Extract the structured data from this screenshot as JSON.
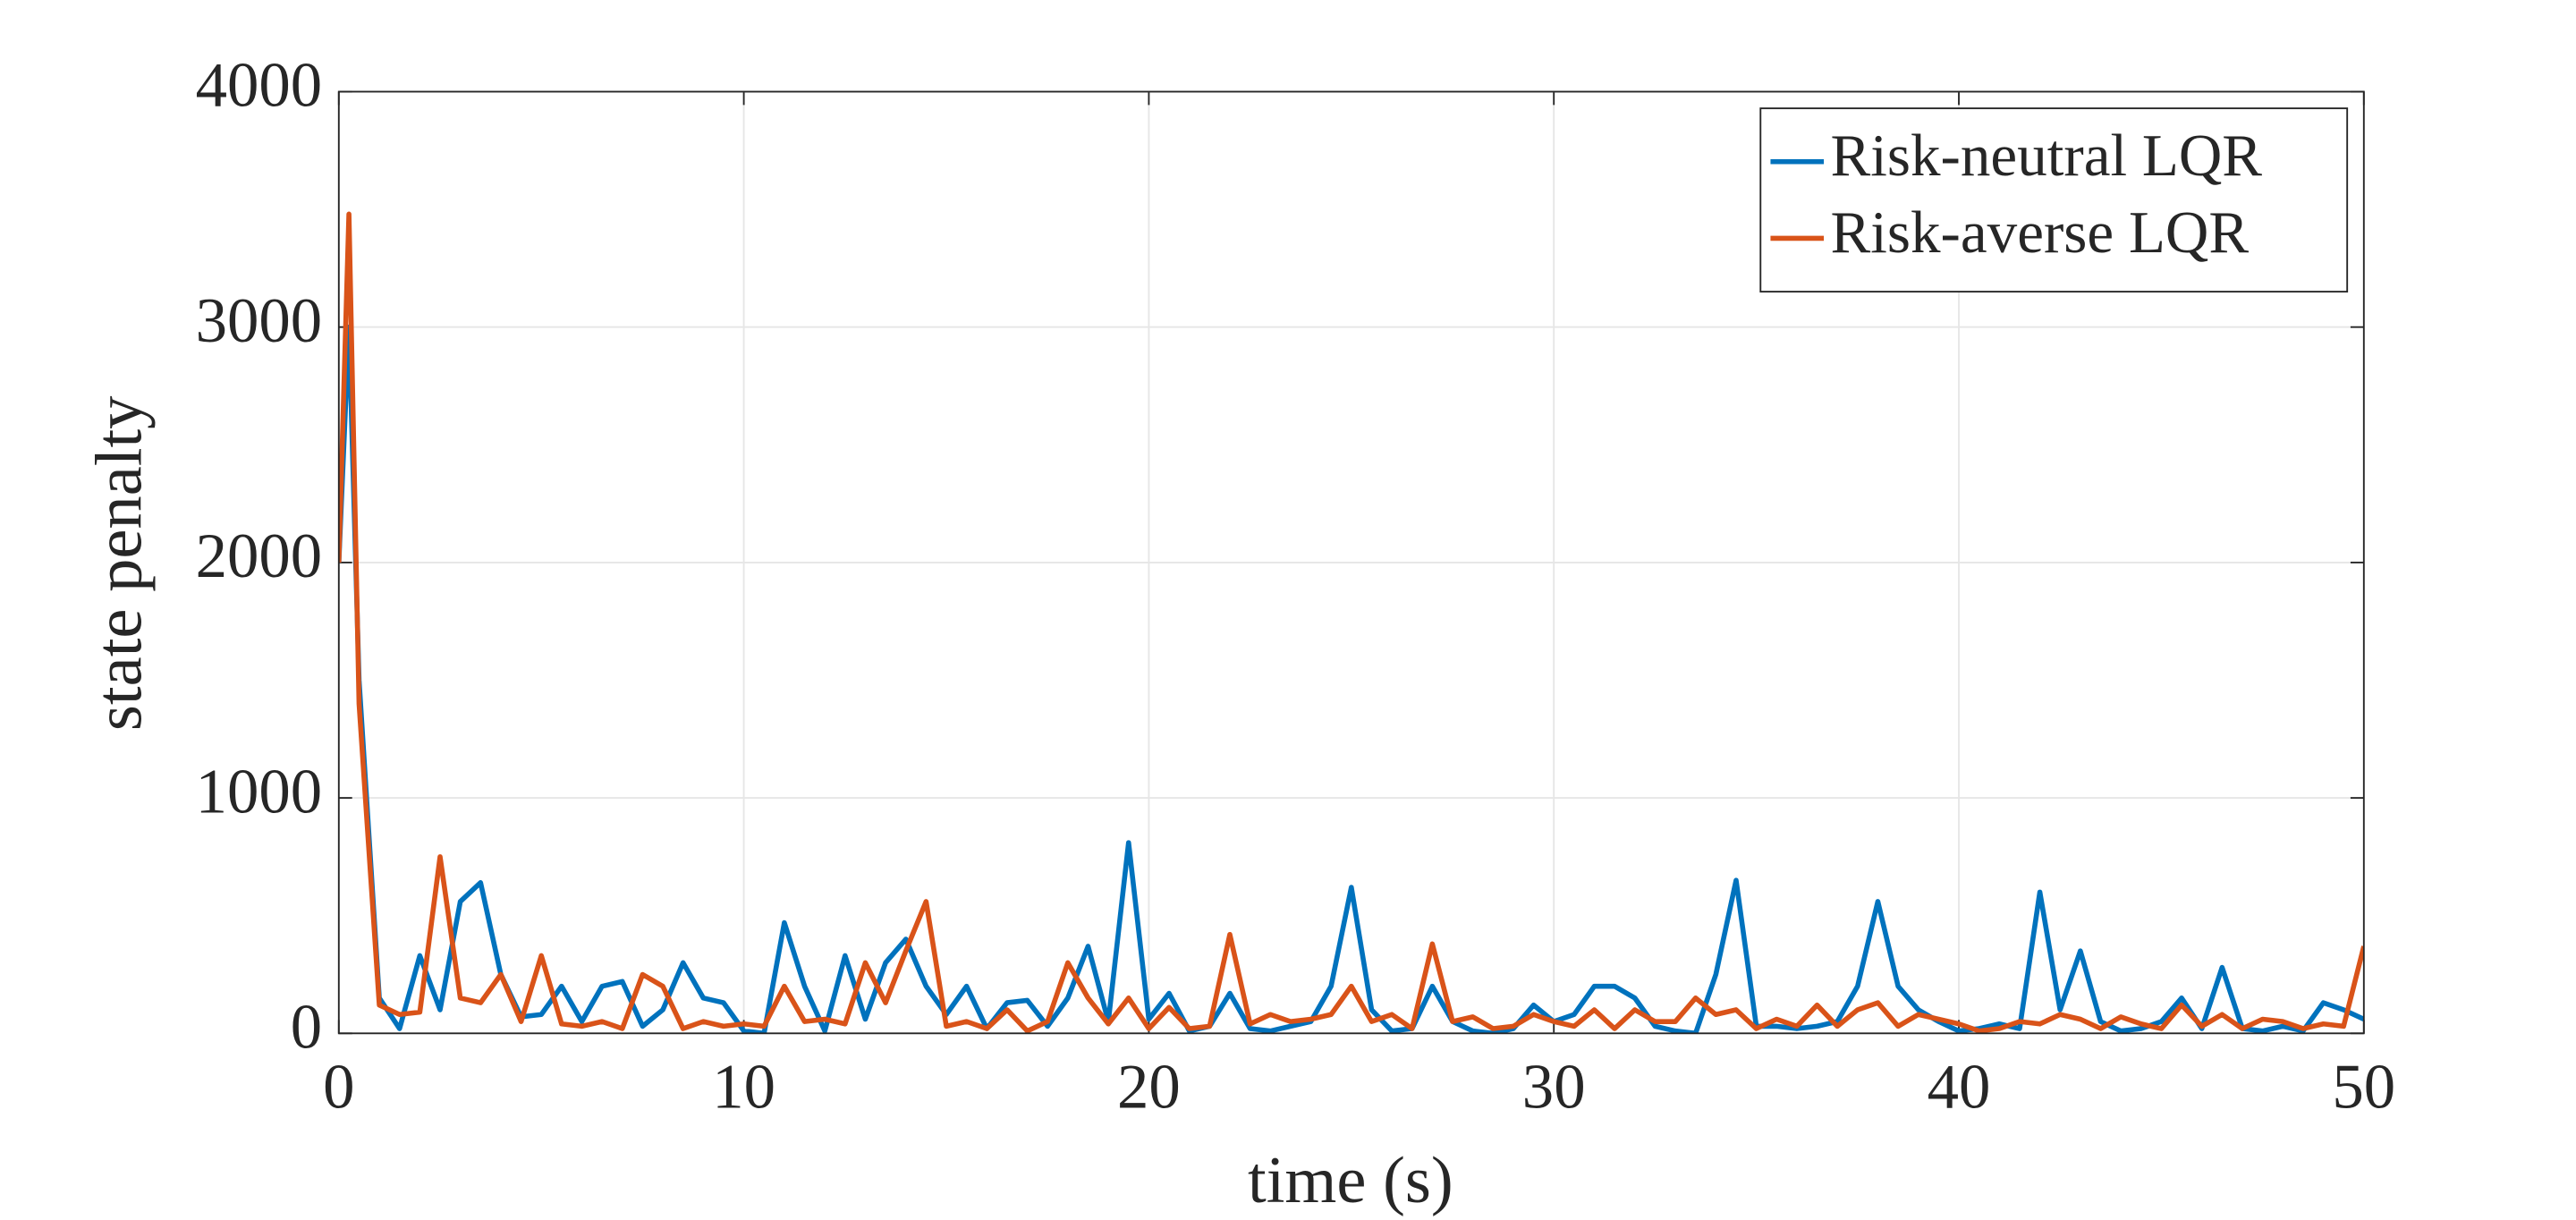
{
  "chart_data": {
    "type": "line",
    "xlabel": "time (s)",
    "ylabel": "state penalty",
    "x": [
      0,
      0.25,
      0.5,
      1,
      1.5,
      2,
      2.5,
      3,
      3.5,
      4,
      4.5,
      5,
      5.5,
      6,
      6.5,
      7,
      7.5,
      8,
      8.5,
      9,
      9.5,
      10,
      10.5,
      11,
      11.5,
      12,
      12.5,
      13,
      13.5,
      14,
      14.5,
      15,
      15.5,
      16,
      16.5,
      17,
      17.5,
      18,
      18.5,
      19,
      19.5,
      20,
      20.5,
      21,
      21.5,
      22,
      22.5,
      23,
      23.5,
      24,
      24.5,
      25,
      25.5,
      26,
      26.5,
      27,
      27.5,
      28,
      28.5,
      29,
      29.5,
      30,
      30.5,
      31,
      31.5,
      32,
      32.5,
      33,
      33.5,
      34,
      34.5,
      35,
      35.5,
      36,
      36.5,
      37,
      37.5,
      38,
      38.5,
      39,
      39.5,
      40,
      40.5,
      41,
      41.5,
      42,
      42.5,
      43,
      43.5,
      44,
      44.5,
      45,
      45.5,
      46,
      46.5,
      47,
      47.5,
      48,
      48.5,
      49,
      49.5,
      50
    ],
    "series": [
      {
        "name": "Risk-neutral LQR",
        "color": "#0072bd",
        "values": [
          2000,
          3000,
          1500,
          150,
          20,
          330,
          100,
          560,
          640,
          250,
          70,
          80,
          200,
          50,
          200,
          220,
          30,
          100,
          300,
          150,
          130,
          10,
          0,
          470,
          200,
          10,
          330,
          60,
          300,
          400,
          200,
          80,
          200,
          20,
          130,
          140,
          30,
          150,
          370,
          50,
          810,
          60,
          170,
          10,
          30,
          170,
          20,
          10,
          30,
          50,
          200,
          620,
          100,
          10,
          20,
          200,
          50,
          10,
          0,
          20,
          120,
          50,
          80,
          200,
          200,
          150,
          30,
          10,
          0,
          250,
          650,
          30,
          30,
          20,
          30,
          50,
          200,
          560,
          200,
          100,
          50,
          10,
          20,
          40,
          20,
          600,
          100,
          350,
          50,
          10,
          20,
          50,
          150,
          20,
          280,
          20,
          10,
          30,
          10,
          130,
          100,
          60
        ]
      },
      {
        "name": "Risk-averse LQR",
        "color": "#d95319",
        "values": [
          2000,
          3480,
          1400,
          120,
          80,
          90,
          750,
          150,
          130,
          250,
          50,
          330,
          40,
          30,
          50,
          20,
          250,
          200,
          20,
          50,
          30,
          40,
          30,
          200,
          50,
          60,
          40,
          300,
          130,
          350,
          560,
          30,
          50,
          20,
          100,
          10,
          50,
          300,
          150,
          40,
          150,
          20,
          110,
          20,
          30,
          420,
          40,
          80,
          50,
          60,
          80,
          200,
          50,
          80,
          20,
          380,
          50,
          70,
          20,
          30,
          80,
          50,
          30,
          100,
          20,
          100,
          50,
          50,
          150,
          80,
          100,
          20,
          60,
          30,
          120,
          30,
          100,
          130,
          30,
          80,
          60,
          40,
          10,
          20,
          50,
          40,
          80,
          60,
          20,
          70,
          40,
          20,
          120,
          30,
          80,
          20,
          60,
          50,
          20,
          40,
          30,
          370
        ]
      }
    ],
    "xlim": [
      0,
      50
    ],
    "xticks": [
      0,
      10,
      20,
      30,
      40,
      50
    ],
    "ylim": [
      0,
      4000
    ],
    "yticks": [
      0,
      1000,
      2000,
      3000,
      4000
    ],
    "grid": true,
    "legend": "top-right"
  }
}
